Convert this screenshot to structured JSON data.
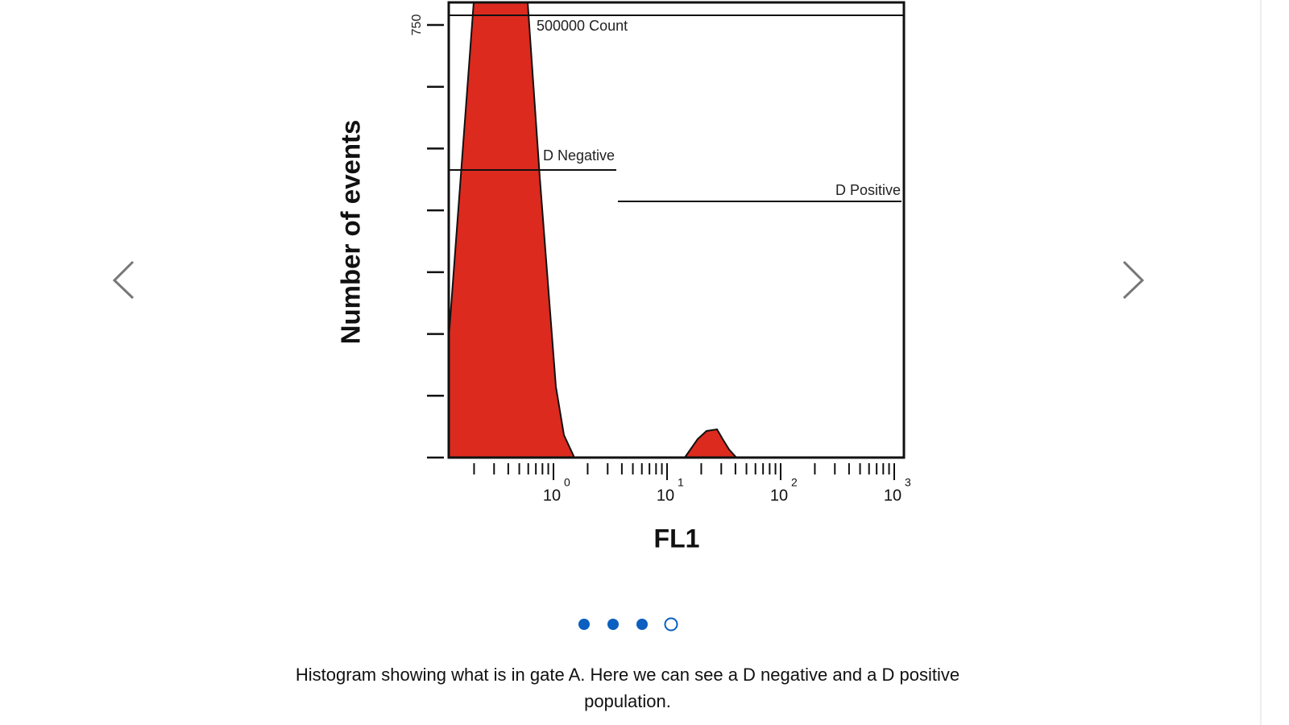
{
  "figure": {
    "y_axis_label": "Number of events",
    "y_tick": "750",
    "x_axis_label": "FL1",
    "x_ticks": [
      {
        "base": "10",
        "exponent": "0"
      },
      {
        "base": "10",
        "exponent": "1"
      },
      {
        "base": "10",
        "exponent": "2"
      },
      {
        "base": "10",
        "exponent": "3"
      }
    ],
    "gates": [
      "500000 Count",
      "D Negative",
      "D Positive"
    ]
  },
  "carousel": {
    "slides": 4,
    "active": 4
  },
  "caption": [
    "Histogram showing what is in gate A. Here we can see a D negative and a D positive",
    "population."
  ]
}
